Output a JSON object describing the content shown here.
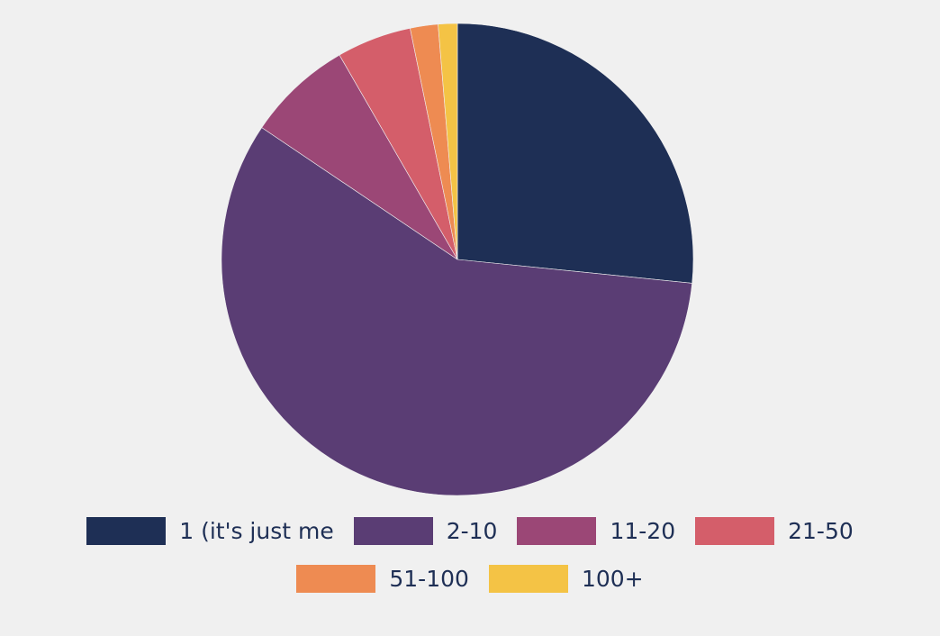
{
  "chart_data": {
    "type": "pie",
    "title": "",
    "start_angle_deg": 0,
    "direction": "clockwise",
    "legend_position": "bottom",
    "slices": [
      {
        "label": "1 (it's just me",
        "value": 26.5,
        "color": "#1e2f55"
      },
      {
        "label": "2-10",
        "value": 57.6,
        "color": "#5a3d74"
      },
      {
        "label": "11-20",
        "value": 7.2,
        "color": "#9b4776"
      },
      {
        "label": "21-50",
        "value": 5.1,
        "color": "#d45e6a"
      },
      {
        "label": "51-100",
        "value": 1.9,
        "color": "#ee8b52"
      },
      {
        "label": "100+",
        "value": 1.3,
        "color": "#f4c345"
      }
    ]
  }
}
